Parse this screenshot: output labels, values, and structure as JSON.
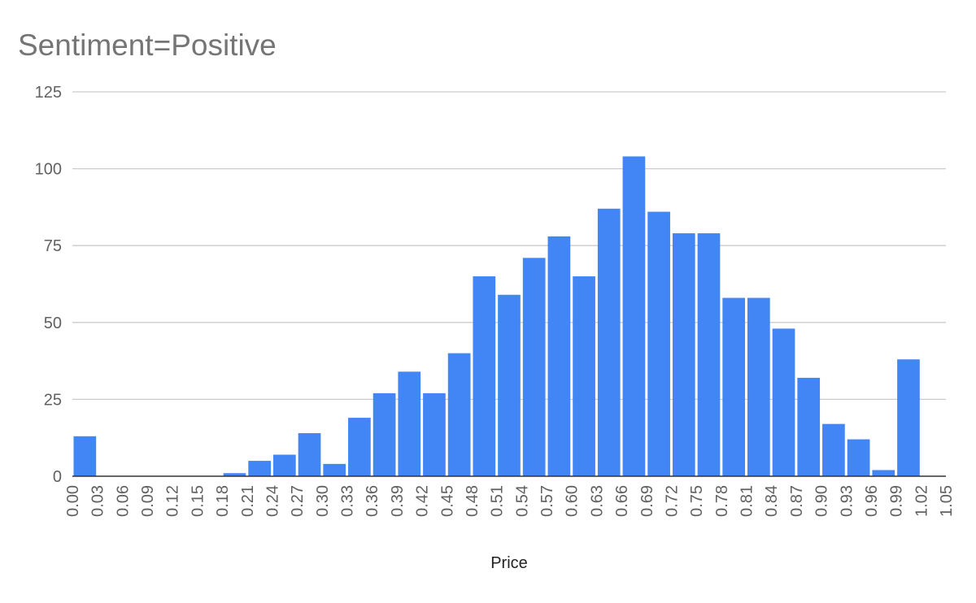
{
  "chart_data": {
    "type": "bar",
    "title": "Sentiment=Positive",
    "xlabel": "Price",
    "ylabel": "",
    "ylim": [
      0,
      125
    ],
    "xlim": [
      0,
      1.05
    ],
    "grid": true,
    "legend": "none",
    "color": "#4285f4",
    "bin_width": 0.03,
    "y_ticks": [
      "0",
      "25",
      "50",
      "75",
      "100",
      "125"
    ],
    "x_ticks": [
      "0.00",
      "0.03",
      "0.06",
      "0.09",
      "0.12",
      "0.15",
      "0.18",
      "0.21",
      "0.24",
      "0.27",
      "0.30",
      "0.33",
      "0.36",
      "0.39",
      "0.42",
      "0.45",
      "0.48",
      "0.51",
      "0.54",
      "0.57",
      "0.60",
      "0.63",
      "0.66",
      "0.69",
      "0.72",
      "0.75",
      "0.78",
      "0.81",
      "0.84",
      "0.87",
      "0.90",
      "0.93",
      "0.96",
      "0.99",
      "1.02",
      "1.05"
    ],
    "categories": [
      "0.00",
      "0.03",
      "0.06",
      "0.09",
      "0.12",
      "0.15",
      "0.18",
      "0.21",
      "0.24",
      "0.27",
      "0.30",
      "0.33",
      "0.36",
      "0.39",
      "0.42",
      "0.45",
      "0.48",
      "0.51",
      "0.54",
      "0.57",
      "0.60",
      "0.63",
      "0.66",
      "0.69",
      "0.72",
      "0.75",
      "0.78",
      "0.81",
      "0.84",
      "0.87",
      "0.90",
      "0.93",
      "0.96",
      "0.99",
      "1.02"
    ],
    "values": [
      13,
      0,
      0,
      0,
      0,
      0,
      1,
      5,
      7,
      14,
      4,
      19,
      27,
      34,
      27,
      40,
      65,
      59,
      71,
      78,
      65,
      87,
      104,
      86,
      79,
      79,
      58,
      58,
      48,
      32,
      17,
      12,
      2,
      38,
      0
    ]
  }
}
